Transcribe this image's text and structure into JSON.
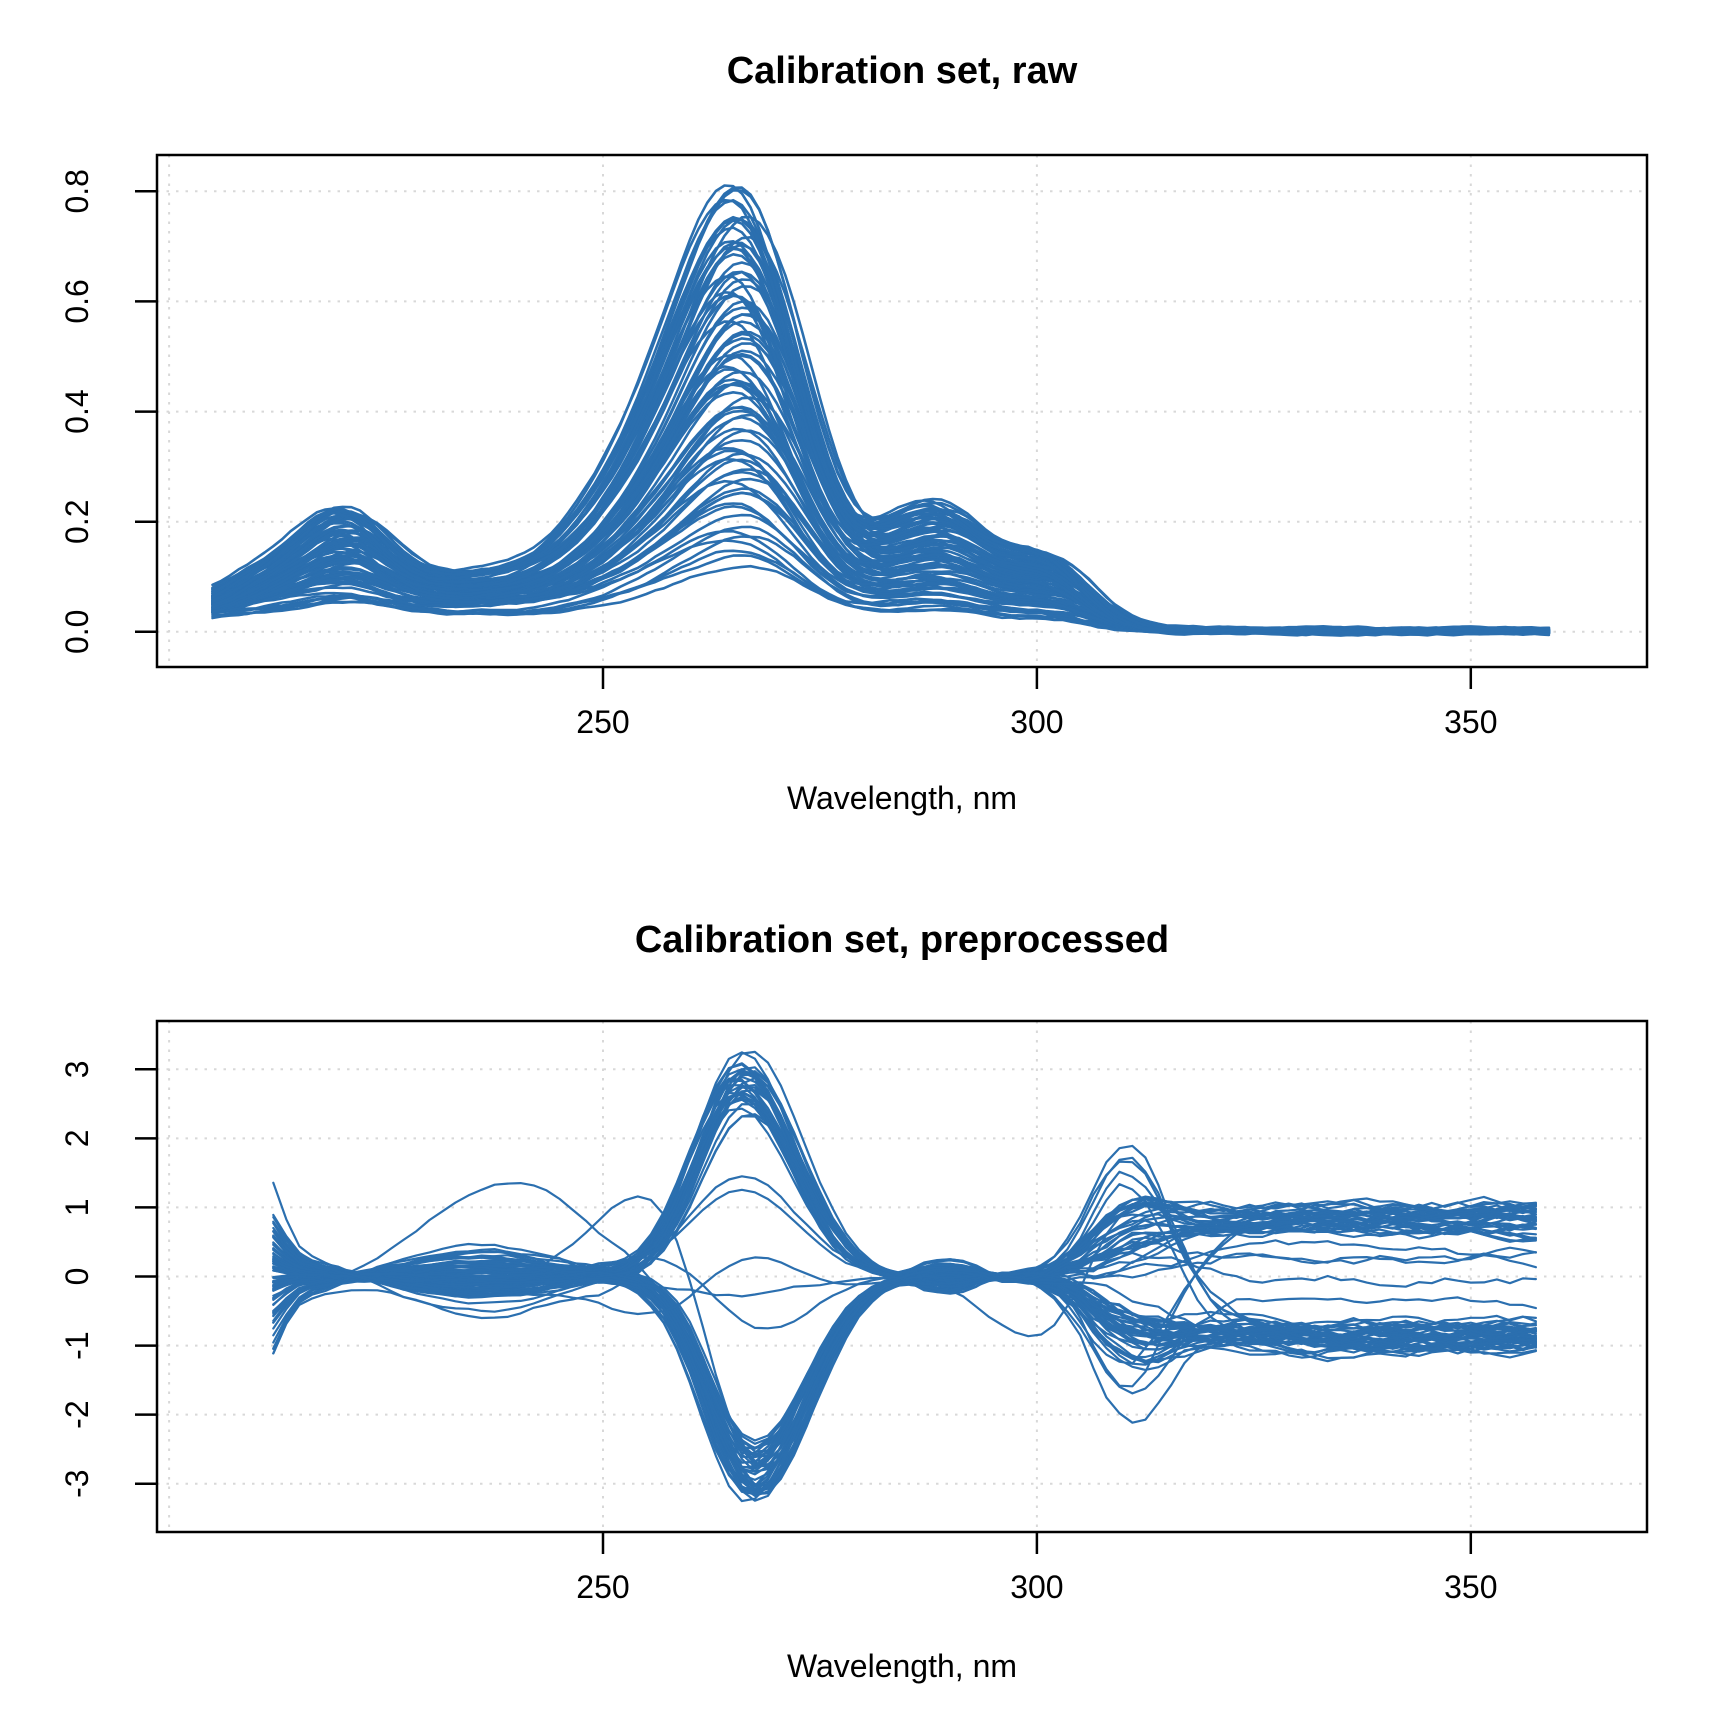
{
  "style": {
    "background": "#FFFFFF",
    "line_color": "#2B6FAF",
    "grid_color": "#D8D8D8",
    "axis_color": "#000000",
    "text_color": "#000000"
  },
  "chart_data": [
    {
      "type": "line",
      "title": "Calibration set, raw",
      "xlabel": "Wavelength, nm",
      "ylabel": "",
      "n_series": 80,
      "legend": "none",
      "grid": "dotted",
      "x_axis": {
        "lim": [
          198.6,
          370.3
        ],
        "ticks": [
          250,
          300,
          350
        ],
        "tick_labels": [
          "250",
          "300",
          "350"
        ],
        "grid_lines": [
          200,
          250,
          300,
          350
        ]
      },
      "y_axis": {
        "lim": [
          -0.064,
          0.866
        ],
        "ticks": [
          0.0,
          0.2,
          0.4,
          0.6,
          0.8
        ],
        "tick_labels": [
          "0.0",
          "0.2",
          "0.4",
          "0.6",
          "0.8"
        ]
      },
      "wavelength": {
        "start": 205,
        "end": 359,
        "step": 1
      },
      "model": {
        "seed": 42,
        "amplitude": {
          "min": 0.105,
          "max": 0.78,
          "skew": 0.85,
          "jitter": 0.05
        },
        "baseline": {
          "amp_min": 0.015,
          "amp_max": 0.05,
          "decay_center": 255,
          "decay_width": 25,
          "decay_scale": 1.2
        },
        "shift": 1.3,
        "noise": 0.0035,
        "peak_norm": 1.05,
        "peaks": [
          {
            "center": 221,
            "sigma_l": 4.6,
            "sigma_r": 4.6,
            "amp": 0.165
          },
          {
            "center": 213.5,
            "sigma_l": 6.0,
            "sigma_r": 6.0,
            "amp": 0.1
          },
          {
            "center": 236,
            "sigma_l": 12.0,
            "sigma_r": 12.0,
            "amp": 0.1
          },
          {
            "center": 254,
            "sigma_l": 7.0,
            "sigma_r": 7.0,
            "amp": 0.26
          },
          {
            "center": 266.5,
            "sigma_l": 7.3,
            "sigma_r": 6.9,
            "amp": 1.0
          },
          {
            "center": 288.5,
            "sigma_l": 6.5,
            "sigma_r": 6.5,
            "amp": 0.3
          },
          {
            "center": 302,
            "sigma_l": 4.6,
            "sigma_r": 4.6,
            "amp": 0.145
          }
        ]
      }
    },
    {
      "type": "line",
      "title": "Calibration set, preprocessed",
      "xlabel": "Wavelength, nm",
      "ylabel": "",
      "n_series": 80,
      "legend": "none",
      "grid": "dotted",
      "x_axis": {
        "lim": [
          198.6,
          370.3
        ],
        "ticks": [
          250,
          300,
          350
        ],
        "tick_labels": [
          "250",
          "300",
          "350"
        ],
        "grid_lines": [
          200,
          250,
          300,
          350
        ]
      },
      "y_axis": {
        "lim": [
          -3.7,
          3.7
        ],
        "ticks": [
          -3,
          -2,
          -1,
          0,
          1,
          2,
          3
        ],
        "tick_labels": [
          "-3",
          "-2",
          "-1",
          "0",
          "1",
          "2",
          "3"
        ]
      },
      "wavelength": {
        "start": 212,
        "end": 358,
        "step": 1.5
      },
      "model": {
        "seed": 7,
        "main_peak": {
          "center": 266.8,
          "sigma_l": 5.3,
          "sigma_r": 6.1,
          "amp": 3.02
        },
        "plateau": {
          "center": 313.5,
          "width": 4.2,
          "amp": 0.93
        },
        "spike": {
          "center": 310.5,
          "sigma_l": 4.2,
          "sigma_r": 5.0,
          "amp": 2.15
        },
        "left_wave": {
          "zero1": 222,
          "zero2": 249.5,
          "amp": 0.55,
          "edge_center": 210.8,
          "edge_sigma": 2.0,
          "edge_amp": 1.15
        },
        "bridge": {
          "start": 284,
          "end": 295,
          "amp": 0.42
        },
        "mid_band": {
          "center": 262,
          "sigma": 10
        },
        "noise": {
          "left": 0.045,
          "right": 0.13
        },
        "score_groups": {
          "neg_frac": 0.42,
          "pos_frac": 0.48,
          "mag_min": 0.8,
          "mag_spread": 0.27,
          "mid_spread": 0.6
        },
        "outliers": [
          {
            "index": 11,
            "center": 240,
            "sigma": 9,
            "amp": 1.15
          },
          {
            "index": 37,
            "center": 236,
            "sigma": 8,
            "amp": -1.05
          },
          {
            "index": 53,
            "center": 257,
            "sigma": 7,
            "amp": 1.55
          },
          {
            "index": 64,
            "center": 300,
            "sigma": 6,
            "amp": -0.9
          }
        ]
      }
    }
  ]
}
